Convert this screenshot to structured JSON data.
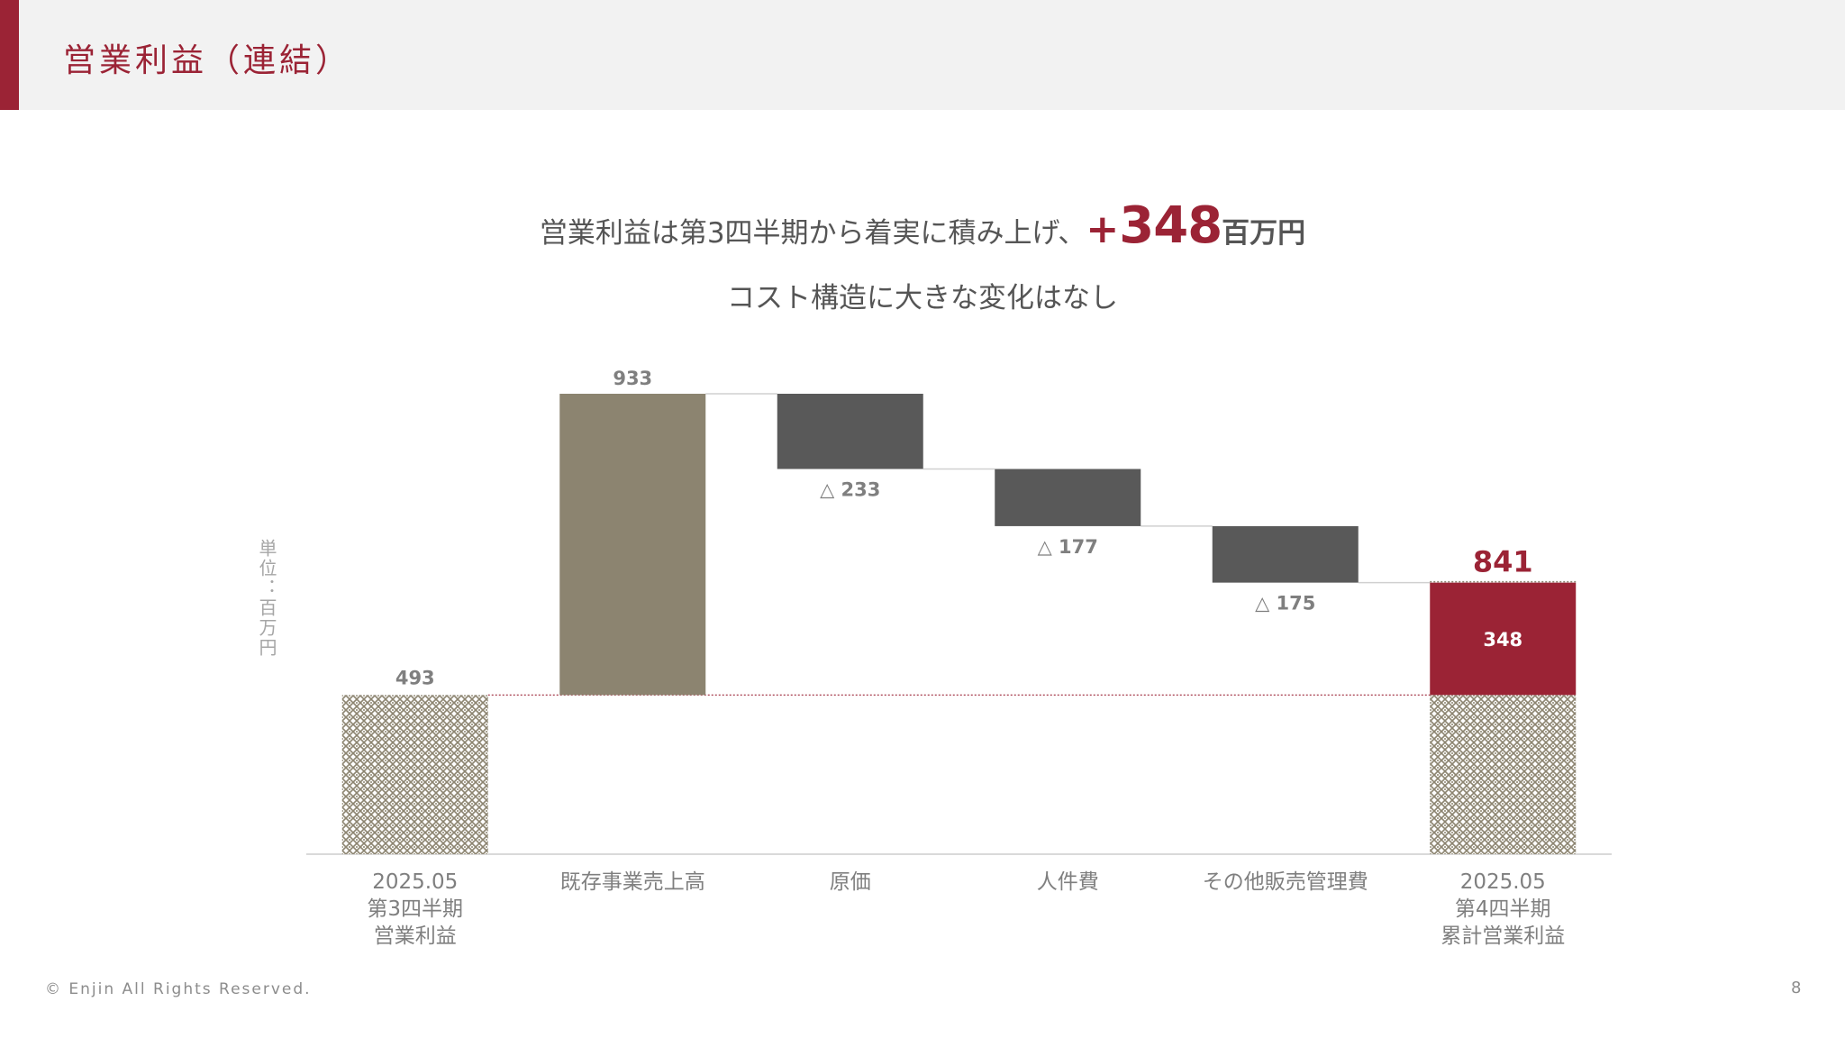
{
  "header": {
    "title": "営業利益（連結）"
  },
  "headline": {
    "text": "営業利益は第3四半期から着実に積み上げ、",
    "plus": "+",
    "number": "348",
    "unit": "百万円"
  },
  "subline": "コスト構造に大きな変化はなし",
  "unit_label": "単位：百万円",
  "colors": {
    "accent": "#9b2335",
    "sales": "#8c8470",
    "cost": "#595959",
    "base_pattern": "#8c8470",
    "text": "#555555",
    "muted": "#7f7f7f"
  },
  "chart_data": {
    "type": "bar",
    "subtype": "waterfall",
    "categories": [
      [
        "2025.05",
        "第3四半期",
        "営業利益"
      ],
      [
        "既存事業売上高"
      ],
      [
        "原価"
      ],
      [
        "人件費"
      ],
      [
        "その他販売管理費"
      ],
      [
        "2025.05",
        "第4四半期",
        "累計営業利益"
      ]
    ],
    "bars": [
      {
        "kind": "base",
        "start": 0,
        "end": 493,
        "label": "493"
      },
      {
        "kind": "increase",
        "start": 493,
        "end": 1426,
        "label": "933"
      },
      {
        "kind": "decrease",
        "start": 1426,
        "end": 1193,
        "label": "△ 233"
      },
      {
        "kind": "decrease",
        "start": 1193,
        "end": 1016,
        "label": "△ 177"
      },
      {
        "kind": "decrease",
        "start": 1016,
        "end": 841,
        "label": "△ 175"
      },
      {
        "kind": "total",
        "base": 493,
        "added": 348,
        "end": 841,
        "label": "841",
        "inner_label": "348"
      }
    ],
    "ylim": [
      0,
      1426
    ],
    "grid": false,
    "legend": "none"
  },
  "footer": {
    "copyright": "© Enjin All Rights Reserved.",
    "page_number": "8"
  }
}
